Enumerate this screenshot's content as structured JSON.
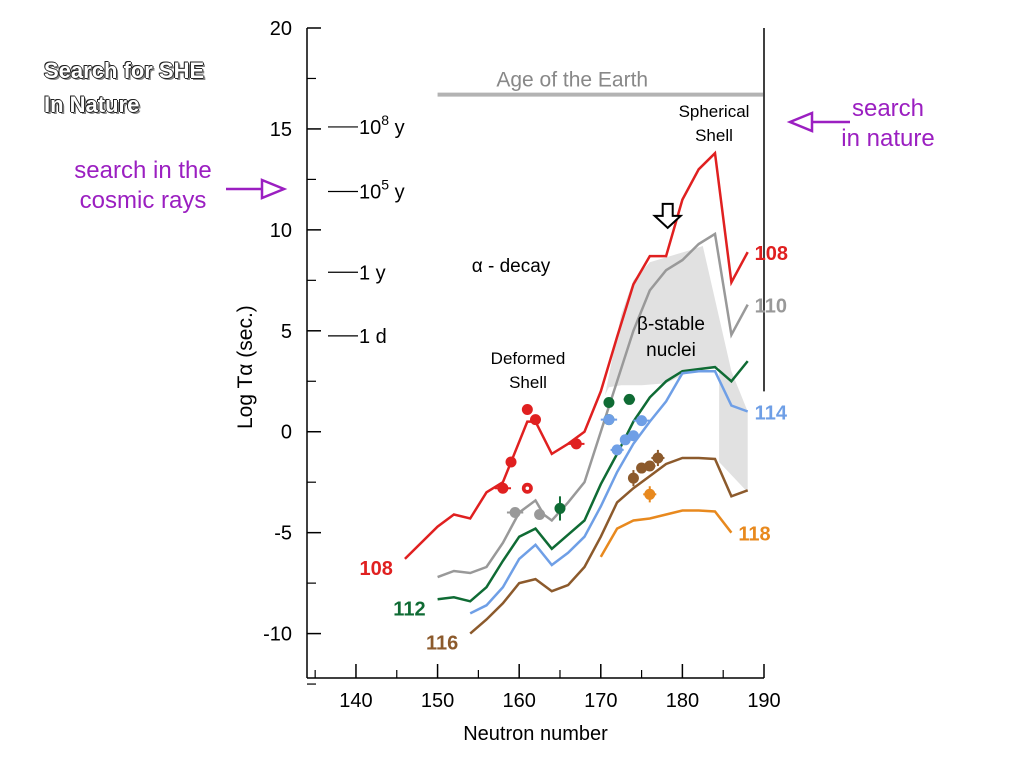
{
  "slide": {
    "title_lines": [
      "Search for SHE",
      "In Nature"
    ],
    "note_cosmic_lines": [
      "search in the",
      "cosmic rays"
    ],
    "note_nature_lines": [
      "search",
      "in nature"
    ],
    "accent_color": "#9b1fc1"
  },
  "chart_data": {
    "type": "line",
    "xlabel": "Neutron number",
    "ylabel": "Log Tα (sec.)",
    "xlim": [
      134,
      190
    ],
    "ylim": [
      -12.2,
      20
    ],
    "x_ticks": [
      "140",
      "150",
      "160",
      "170",
      "180",
      "190"
    ],
    "y_ticks": [
      "20",
      "15",
      "10",
      "5",
      "0",
      "-5",
      "-10"
    ],
    "time_marks": [
      {
        "y": 15.1,
        "base": "10",
        "exp": "8",
        "unit": "y"
      },
      {
        "y": 11.9,
        "base": "10",
        "exp": "5",
        "unit": "y"
      },
      {
        "y": 7.9,
        "base": "1",
        "exp": "",
        "unit": "y"
      },
      {
        "y": 4.75,
        "base": "1",
        "exp": "",
        "unit": "d"
      }
    ],
    "reference_line": {
      "label": "Age of the Earth",
      "y": 16.7,
      "x_range": [
        150,
        190
      ],
      "color": "#b3b3b3"
    },
    "annotations": {
      "alpha_decay": "α - decay",
      "deformed_shell": [
        "Deformed",
        "Shell"
      ],
      "spherical_shell": [
        "Spherical",
        "Shell"
      ],
      "beta_stable": [
        "β-stable",
        "nuclei"
      ]
    },
    "region_beta_stable": {
      "x": [
        170.5,
        171.5,
        172.5,
        174.0,
        176.0,
        178.5,
        181.0,
        182.5,
        186.0,
        188.0,
        188.0,
        184.5,
        184.5,
        181.0,
        178.0,
        175.0,
        172.5,
        171.0
      ],
      "y": [
        1.8,
        3.8,
        5.8,
        7.5,
        8.4,
        8.7,
        9.0,
        9.2,
        3.0,
        1.0,
        -3.0,
        -1.5,
        3.2,
        3.0,
        2.4,
        2.3,
        2.3,
        2.2
      ],
      "color": "#e1e1e1"
    },
    "series": [
      {
        "name": "108",
        "color": "#e02020",
        "label_side": "both",
        "x": [
          146,
          150,
          152,
          154,
          156,
          158,
          160,
          161,
          162,
          163,
          164,
          166,
          168,
          170,
          172,
          174,
          176,
          178,
          180,
          182,
          184,
          186,
          188
        ],
        "y": [
          -6.3,
          -4.7,
          -4.1,
          -4.3,
          -3.0,
          -2.5,
          -0.5,
          0.5,
          0.5,
          -0.3,
          -1.1,
          -0.6,
          0.0,
          2.0,
          4.7,
          7.3,
          8.7,
          8.7,
          11.5,
          13.0,
          13.8,
          7.4,
          8.9
        ]
      },
      {
        "name": "110",
        "color": "#999999",
        "label_side": "right",
        "x": [
          150,
          152,
          154,
          156,
          158,
          160,
          162,
          163,
          164,
          166,
          168,
          170,
          172,
          174,
          176,
          178,
          180,
          182,
          184,
          186,
          188
        ],
        "y": [
          -7.2,
          -6.9,
          -7.0,
          -6.7,
          -5.5,
          -4.0,
          -3.4,
          -4.1,
          -4.4,
          -3.5,
          -2.5,
          0.0,
          2.5,
          5.0,
          7.0,
          8.0,
          8.5,
          9.3,
          9.8,
          4.8,
          6.3
        ]
      },
      {
        "name": "112",
        "color": "#0f6b34",
        "label_side": "left",
        "x": [
          150,
          152,
          154,
          156,
          158,
          160,
          162,
          164,
          166,
          168,
          170,
          172,
          174,
          176,
          178,
          180,
          182,
          184,
          186,
          188
        ],
        "y": [
          -8.3,
          -8.2,
          -8.4,
          -7.7,
          -6.4,
          -5.2,
          -4.8,
          -5.8,
          -5.1,
          -4.4,
          -2.6,
          -1.1,
          0.5,
          1.7,
          2.5,
          3.0,
          3.1,
          3.2,
          2.5,
          3.5
        ]
      },
      {
        "name": "114",
        "color": "#6f9fe6",
        "label_side": "right",
        "x": [
          154,
          156,
          158,
          160,
          162,
          164,
          166,
          168,
          170,
          172,
          174,
          176,
          178,
          180,
          182,
          184,
          186,
          188
        ],
        "y": [
          -9.0,
          -8.6,
          -7.7,
          -6.3,
          -5.6,
          -6.6,
          -6.0,
          -5.2,
          -3.7,
          -2.0,
          -0.6,
          0.5,
          1.5,
          2.9,
          3.0,
          3.0,
          1.3,
          1.0
        ]
      },
      {
        "name": "116",
        "color": "#8c5a2c",
        "label_side": "left",
        "x": [
          154,
          156,
          158,
          160,
          162,
          164,
          166,
          168,
          170,
          172,
          174,
          176,
          178,
          180,
          182,
          184,
          186,
          188
        ],
        "y": [
          -10.0,
          -9.3,
          -8.5,
          -7.5,
          -7.3,
          -7.9,
          -7.6,
          -6.7,
          -5.2,
          -3.5,
          -2.8,
          -2.2,
          -1.6,
          -1.3,
          -1.3,
          -1.35,
          -3.2,
          -2.9
        ]
      },
      {
        "name": "118",
        "color": "#e8891e",
        "label_side": "right",
        "x": [
          170,
          172,
          174,
          176,
          178,
          180,
          182,
          184,
          186
        ],
        "y": [
          -6.2,
          -4.8,
          -4.4,
          -4.3,
          -4.1,
          -3.9,
          -3.9,
          -3.95,
          -5.0
        ]
      }
    ],
    "points": [
      {
        "x": 158,
        "y": -2.8,
        "color": "#e02020",
        "err_x": 1
      },
      {
        "x": 159,
        "y": -1.5,
        "color": "#e02020"
      },
      {
        "x": 161,
        "y": 1.1,
        "color": "#e02020"
      },
      {
        "x": 161,
        "y": -2.8,
        "color": "#e02020",
        "open": true
      },
      {
        "x": 162,
        "y": 0.6,
        "color": "#e02020"
      },
      {
        "x": 167,
        "y": -0.6,
        "color": "#e02020",
        "err_x": 1
      },
      {
        "x": 159.5,
        "y": -4.0,
        "color": "#999999",
        "err_x": 1
      },
      {
        "x": 162.5,
        "y": -4.1,
        "color": "#999999"
      },
      {
        "x": 165,
        "y": -3.8,
        "color": "#0f6b34",
        "err_y": 0.6
      },
      {
        "x": 171,
        "y": 1.45,
        "color": "#0f6b34"
      },
      {
        "x": 171,
        "y": 0.6,
        "color": "#0f6b34"
      },
      {
        "x": 173.5,
        "y": 1.6,
        "color": "#0f6b34",
        "err_x": 0.7
      },
      {
        "x": 171,
        "y": 0.6,
        "color": "#6f9fe6",
        "err_x": 1
      },
      {
        "x": 172,
        "y": -0.9,
        "color": "#6f9fe6",
        "err_x": 0.8
      },
      {
        "x": 173,
        "y": -0.4,
        "color": "#6f9fe6"
      },
      {
        "x": 174,
        "y": -0.2,
        "color": "#6f9fe6"
      },
      {
        "x": 175,
        "y": 0.55,
        "color": "#6f9fe6",
        "err_x": 1
      },
      {
        "x": 174,
        "y": -2.3,
        "color": "#8c5a2c",
        "err_y": 0.4
      },
      {
        "x": 175,
        "y": -1.8,
        "color": "#8c5a2c"
      },
      {
        "x": 176,
        "y": -1.7,
        "color": "#8c5a2c",
        "err_x": 0.7
      },
      {
        "x": 177,
        "y": -1.3,
        "color": "#8c5a2c",
        "err_x": 0.8,
        "err_y": 0.4
      },
      {
        "x": 176,
        "y": -3.1,
        "color": "#e8891e",
        "err_x": 0.8,
        "err_y": 0.4
      }
    ],
    "spherical_shell_pointer": {
      "x": 178.2,
      "y": 10.1
    }
  }
}
